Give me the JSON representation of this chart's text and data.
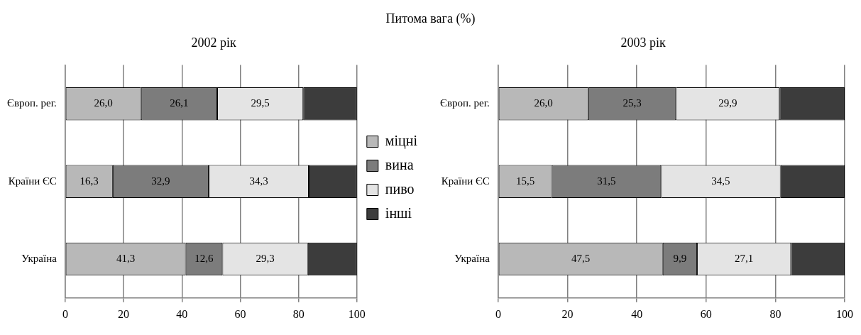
{
  "chart_data": [
    {
      "type": "bar",
      "orientation": "horizontal",
      "stacked": true,
      "title": "2002 рік",
      "annotations": [
        "Питома вага (%)"
      ],
      "categories": [
        "Європ. рег.",
        "Країни ЄС",
        "Україна"
      ],
      "xlim": [
        0,
        100
      ],
      "xticks": [
        0,
        20,
        40,
        60,
        80,
        100
      ],
      "grid": "x",
      "legend": "right",
      "series": [
        {
          "name": "міцні",
          "color": "#b8b8b8",
          "values": [
            26.0,
            16.3,
            41.3
          ],
          "value_labels": [
            "26,0",
            "16,3",
            "41,3"
          ]
        },
        {
          "name": "вина",
          "color": "#7c7c7c",
          "values": [
            26.1,
            32.9,
            12.6
          ],
          "value_labels": [
            "26,1",
            "32,9",
            "12,6"
          ]
        },
        {
          "name": "пиво",
          "color": "#e4e4e4",
          "values": [
            29.5,
            34.3,
            29.3
          ],
          "value_labels": [
            "29,5",
            "34,3",
            "29,3"
          ]
        },
        {
          "name": "інші",
          "color": "#3c3c3c",
          "values": [
            18.4,
            16.5,
            16.8
          ]
        }
      ]
    },
    {
      "type": "bar",
      "orientation": "horizontal",
      "stacked": true,
      "title": "2003 рік",
      "categories": [
        "Європ. рег.",
        "Країни ЄС",
        "Україна"
      ],
      "xlim": [
        0,
        100
      ],
      "xticks": [
        0,
        20,
        40,
        60,
        80,
        100
      ],
      "grid": "x",
      "series": [
        {
          "color": "#b8b8b8",
          "values": [
            26.0,
            15.5,
            47.5
          ],
          "value_labels": [
            "26,0",
            "15,5",
            "47,5"
          ]
        },
        {
          "color": "#7c7c7c",
          "values": [
            25.3,
            31.5,
            9.9
          ],
          "value_labels": [
            "25,3",
            "31,5",
            "9,9"
          ]
        },
        {
          "color": "#e4e4e4",
          "values": [
            29.9,
            34.5,
            27.1
          ],
          "value_labels": [
            "29,9",
            "34,5",
            "27,1"
          ]
        },
        {
          "color": "#3c3c3c",
          "values": [
            18.8,
            18.5,
            15.5
          ]
        }
      ]
    }
  ]
}
